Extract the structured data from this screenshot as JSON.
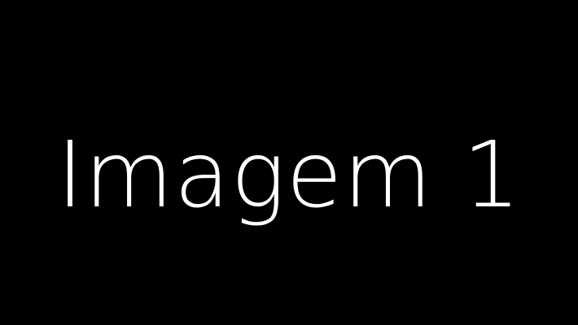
{
  "slide": {
    "title": "Imagem 1",
    "background_color": "#000000",
    "text_color": "#ffffff"
  }
}
